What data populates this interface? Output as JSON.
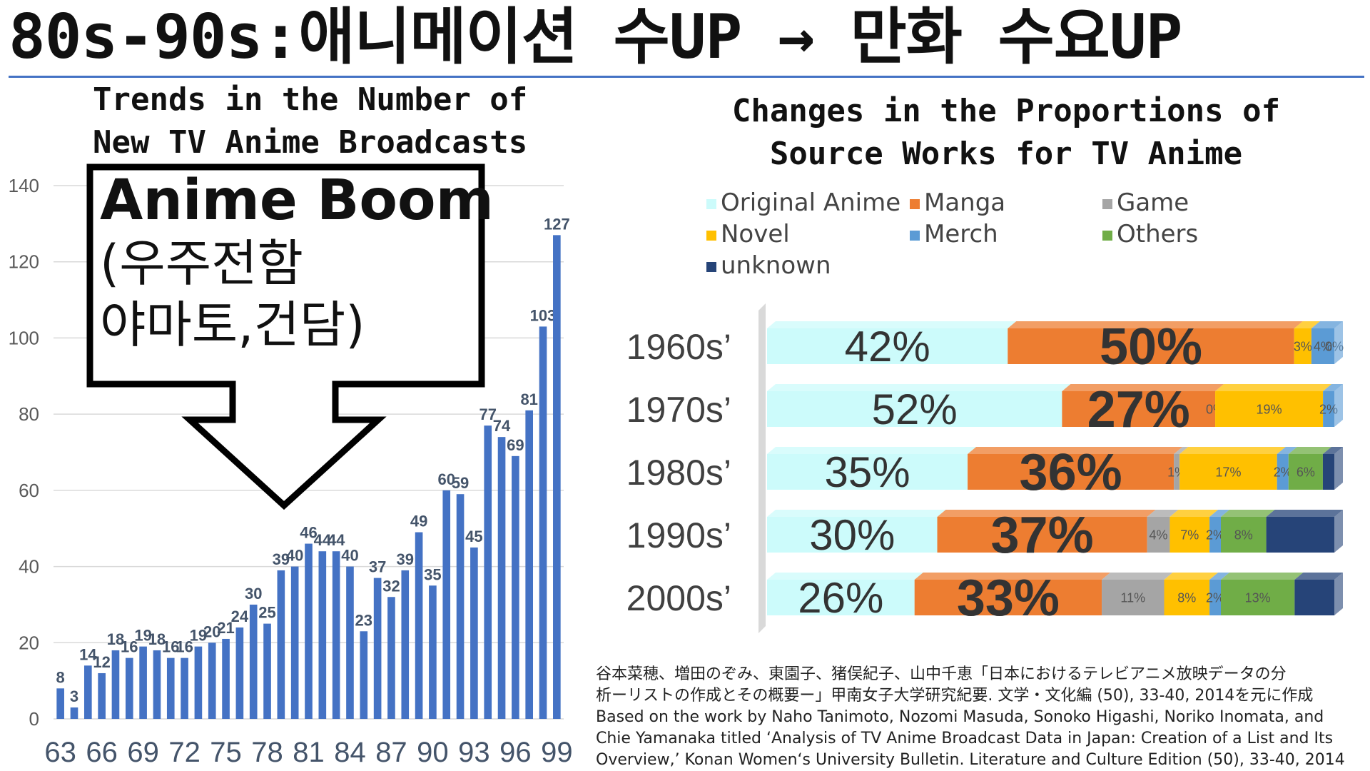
{
  "main_title": "80s-90s:애니메이션 수UP → 만화 수요UP",
  "chart_data": [
    {
      "type": "bar",
      "title": "Trends in the Number of New TV Anime Broadcasts",
      "title_lines": [
        "Trends in the Number of",
        "New TV Anime Broadcasts"
      ],
      "x": [
        63,
        64,
        65,
        66,
        67,
        68,
        69,
        70,
        71,
        72,
        73,
        74,
        75,
        76,
        77,
        78,
        79,
        80,
        81,
        82,
        83,
        84,
        85,
        86,
        87,
        88,
        89,
        90,
        91,
        92,
        93,
        94,
        95,
        96,
        97,
        98,
        99
      ],
      "x_tick_labels": [
        "63",
        "66",
        "69",
        "72",
        "75",
        "78",
        "81",
        "84",
        "87",
        "90",
        "93",
        "96",
        "99"
      ],
      "values": [
        8,
        3,
        14,
        12,
        18,
        16,
        19,
        18,
        16,
        16,
        19,
        20,
        21,
        24,
        30,
        25,
        39,
        40,
        46,
        44,
        44,
        40,
        23,
        37,
        32,
        39,
        49,
        35,
        60,
        59,
        45,
        77,
        74,
        69,
        81,
        103,
        127
      ],
      "ylim": [
        0,
        140
      ],
      "y_ticks": [
        0,
        20,
        40,
        60,
        80,
        100,
        120,
        140
      ],
      "bar_color": "#4472c4",
      "grid": true
    },
    {
      "type": "bar",
      "orientation": "horizontal",
      "stacked": true,
      "title": "Changes in the Proportions of Source Works for TV Anime",
      "title_lines": [
        "Changes in the Proportions of",
        "Source Works for TV Anime"
      ],
      "categories": [
        "1960s’",
        "1970s’",
        "1980s’",
        "1990s’",
        "2000s’"
      ],
      "series": [
        {
          "name": "Original Anime",
          "color": "#ccfbfb",
          "values": [
            42,
            52,
            35,
            30,
            26
          ],
          "labels": [
            "42%",
            "52%",
            "35%",
            "30%",
            "26%"
          ]
        },
        {
          "name": "Manga",
          "color": "#ed7d31",
          "values": [
            50,
            27,
            36,
            37,
            33
          ],
          "labels": [
            "50%",
            "27%",
            "36%",
            "37%",
            "33%"
          ]
        },
        {
          "name": "Game",
          "color": "#a5a5a5",
          "values": [
            0,
            0,
            1,
            4,
            11
          ],
          "labels": [
            "",
            "0%",
            "1%",
            "4%",
            "11%"
          ]
        },
        {
          "name": "Novel",
          "color": "#ffc000",
          "values": [
            3,
            19,
            17,
            7,
            8
          ],
          "labels": [
            "3%",
            "19%",
            "17%",
            "7%",
            "8%"
          ]
        },
        {
          "name": "Merch",
          "color": "#5b9bd5",
          "values": [
            4,
            2,
            2,
            2,
            2
          ],
          "labels": [
            "4%",
            "2%",
            "2%",
            "2%",
            "2%"
          ]
        },
        {
          "name": "Others",
          "color": "#70ad47",
          "values": [
            0,
            0,
            6,
            8,
            13
          ],
          "labels": [
            "0%",
            "",
            "6%",
            "8%",
            "13%"
          ]
        },
        {
          "name": "unknown",
          "color": "#264478",
          "values": [
            0,
            0,
            2,
            12,
            7
          ],
          "labels": [
            "",
            "",
            "",
            "",
            ""
          ]
        }
      ],
      "legend_placement": "top",
      "xlim": [
        0,
        100
      ]
    }
  ],
  "callout": {
    "main": "Anime Boom",
    "sub": "(우주전함\n야마토,건담)"
  },
  "citation": [
    "谷本菜穂、増田のぞみ、東園子、猪俣紀子、山中千恵「日本におけるテレビアニメ放映データの分",
    "析ーリストの作成とその概要ー」甲南女子大学研究紀要. 文学・文化編 (50), 33-40, 2014を元に作成",
    "Based on the work by Naho Tanimoto, Nozomi Masuda, Sonoko Higashi, Noriko Inomata, and",
    "Chie Yamanaka titled ‘Analysis of TV Anime Broadcast Data in Japan: Creation of a List and Its",
    "Overview,’ Konan Women‘s University Bulletin. Literature and Culture Edition (50), 33-40, 2014"
  ]
}
